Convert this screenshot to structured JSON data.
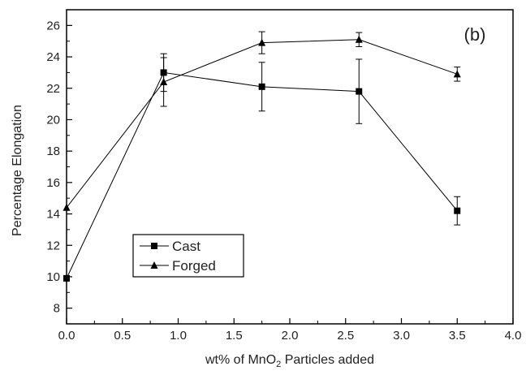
{
  "chart_data": {
    "type": "line",
    "panel_label": "(b)",
    "xlabel_main": "wt% of MnO",
    "xlabel_sub": "2",
    "xlabel_rest": " Particles added",
    "ylabel": "Percentage Elongation",
    "xlim": [
      0.0,
      4.0
    ],
    "ylim": [
      7,
      27
    ],
    "xticks": [
      0.0,
      0.5,
      1.0,
      1.5,
      2.0,
      2.5,
      3.0,
      3.5,
      4.0
    ],
    "xtick_labels": [
      "0.0",
      "0.5",
      "1.0",
      "1.5",
      "2.0",
      "2.5",
      "3.0",
      "3.5",
      "4.0"
    ],
    "yticks": [
      8,
      10,
      12,
      14,
      16,
      18,
      20,
      22,
      24,
      26
    ],
    "ytick_labels": [
      "8",
      "10",
      "12",
      "14",
      "16",
      "18",
      "20",
      "22",
      "24",
      "26"
    ],
    "grid": false,
    "legend_position": "lower-left",
    "series": [
      {
        "name": "Cast",
        "marker": "square",
        "x": [
          0.0,
          0.87,
          1.75,
          2.62,
          3.5
        ],
        "y": [
          9.9,
          23.0,
          22.1,
          21.8,
          14.2
        ],
        "err": [
          0,
          1.2,
          1.55,
          2.05,
          0.9
        ]
      },
      {
        "name": "Forged",
        "marker": "triangle",
        "x": [
          0.0,
          0.87,
          1.75,
          2.62,
          3.5
        ],
        "y": [
          14.4,
          22.4,
          24.9,
          25.1,
          22.9
        ],
        "err": [
          0,
          1.55,
          0.7,
          0.45,
          0.45
        ]
      }
    ]
  }
}
